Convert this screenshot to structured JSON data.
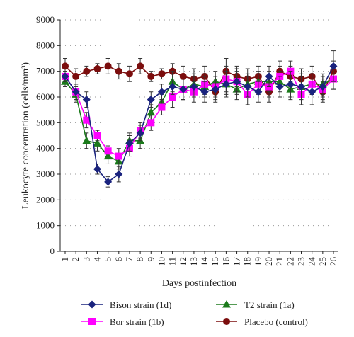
{
  "chart_data": {
    "type": "line",
    "title": "",
    "xlabel": "Days postinfection",
    "ylabel": "Leukocyte concentration (cells/mm³)",
    "x": [
      1,
      2,
      3,
      4,
      5,
      6,
      7,
      8,
      9,
      10,
      11,
      12,
      13,
      14,
      15,
      16,
      17,
      18,
      19,
      20,
      21,
      22,
      23,
      24,
      25,
      26
    ],
    "ylim": [
      0,
      9000
    ],
    "yticks": [
      0,
      1000,
      2000,
      3000,
      4000,
      5000,
      6000,
      7000,
      8000,
      9000
    ],
    "grid": "dotted horizontal",
    "legend_position": "bottom",
    "series": [
      {
        "name": "Bison strain (1d)",
        "color": "#1a237e",
        "marker": "diamond",
        "values": [
          6800,
          6200,
          5900,
          3200,
          2700,
          3000,
          4200,
          4600,
          5900,
          6200,
          6400,
          6300,
          6400,
          6200,
          6300,
          6500,
          6600,
          6400,
          6200,
          6800,
          6400,
          6500,
          6400,
          6200,
          6400,
          7200
        ],
        "errors": [
          200,
          300,
          300,
          200,
          200,
          300,
          300,
          300,
          300,
          300,
          300,
          400,
          400,
          400,
          400,
          500,
          500,
          400,
          400,
          400,
          400,
          500,
          500,
          500,
          400,
          600
        ]
      },
      {
        "name": "Bor strain (1b)",
        "color": "#ff00ff",
        "marker": "square",
        "values": [
          6800,
          6200,
          5100,
          4500,
          3900,
          3700,
          4000,
          4700,
          5000,
          5600,
          6000,
          6300,
          6200,
          6500,
          6400,
          6700,
          6600,
          6100,
          6500,
          6400,
          6800,
          7000,
          6100,
          6500,
          6300,
          6700
        ],
        "errors": [
          200,
          300,
          300,
          200,
          200,
          300,
          300,
          300,
          300,
          300,
          400,
          400,
          400,
          400,
          400,
          500,
          400,
          400,
          400,
          400,
          400,
          400,
          400,
          400,
          400,
          400
        ]
      },
      {
        "name": "T2 strain (1a)",
        "color": "#1b7a1b",
        "marker": "triangle",
        "values": [
          6600,
          6100,
          4300,
          4200,
          3700,
          3500,
          4300,
          4300,
          5400,
          5800,
          6600,
          6300,
          6500,
          6400,
          6600,
          6500,
          6300,
          6500,
          6600,
          6600,
          6600,
          6300,
          6400,
          6500,
          6500,
          6700
        ],
        "errors": [
          200,
          300,
          300,
          300,
          300,
          300,
          300,
          300,
          300,
          300,
          400,
          400,
          400,
          400,
          400,
          400,
          400,
          400,
          400,
          400,
          400,
          400,
          400,
          400,
          400,
          400
        ]
      },
      {
        "name": "Placebo (control)",
        "color": "#7b0d0d",
        "marker": "circle",
        "values": [
          7200,
          6800,
          7000,
          7100,
          7200,
          7000,
          6900,
          7200,
          6800,
          6900,
          7000,
          6800,
          6700,
          6800,
          6200,
          7000,
          6800,
          6700,
          6800,
          6200,
          7000,
          6800,
          6700,
          6800,
          6200,
          7000
        ],
        "errors": [
          300,
          300,
          200,
          200,
          300,
          300,
          300,
          300,
          200,
          200,
          300,
          400,
          400,
          400,
          400,
          500,
          400,
          400,
          400,
          400,
          400,
          400,
          400,
          400,
          400,
          400
        ]
      }
    ]
  }
}
